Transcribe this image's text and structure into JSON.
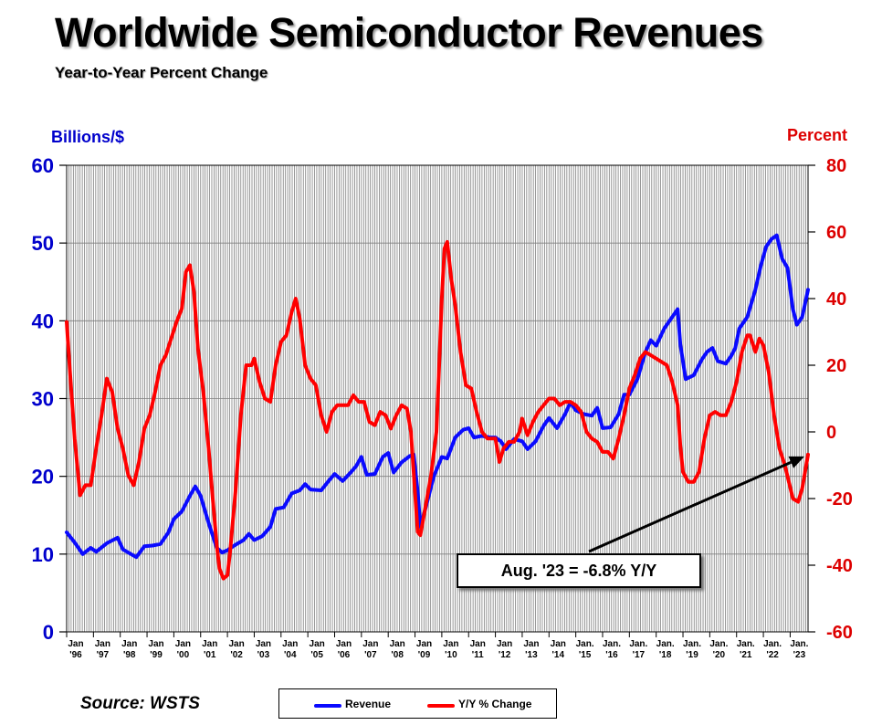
{
  "header": {
    "title": "Worldwide Semiconductor Revenues",
    "subtitle": "Year-to-Year Percent Change"
  },
  "footer": {
    "source": "Source: WSTS"
  },
  "annotation": {
    "text": "Aug. '23 = -6.8% Y/Y"
  },
  "colors": {
    "revenue": "#0a0aff",
    "yoy": "#ff0000",
    "left_axis_text": "#0000cc",
    "right_axis_text": "#dd0000",
    "grid": "#7f7f7f"
  },
  "chart_data": {
    "type": "line",
    "title": "Worldwide Semiconductor Revenues",
    "subtitle": "Year-to-Year Percent Change",
    "left_axis": {
      "label": "Billions/$",
      "min": 0,
      "max": 60,
      "ticks": [
        0,
        10,
        20,
        30,
        40,
        50,
        60
      ]
    },
    "right_axis": {
      "label": "Percent",
      "min": -60,
      "max": 80,
      "ticks": [
        -60,
        -40,
        -20,
        0,
        20,
        40,
        60,
        80
      ]
    },
    "x_axis": {
      "start": 1996.0,
      "end": 2023.667,
      "tick_labels": [
        [
          "Jan",
          "'96"
        ],
        [
          "Jan",
          "'97"
        ],
        [
          "Jan",
          "'98"
        ],
        [
          "Jan",
          "'99"
        ],
        [
          "Jan",
          "'00"
        ],
        [
          "Jan",
          "'01"
        ],
        [
          "Jan",
          "'02"
        ],
        [
          "Jan",
          "'03"
        ],
        [
          "Jan",
          "'04"
        ],
        [
          "Jan",
          "'05"
        ],
        [
          "Jan",
          "'06"
        ],
        [
          "Jan",
          "'07"
        ],
        [
          "Jan",
          "'08"
        ],
        [
          "Jan",
          "'09"
        ],
        [
          "Jan",
          "'10"
        ],
        [
          "Jan",
          "'11"
        ],
        [
          "Jan",
          "'12"
        ],
        [
          "Jan",
          "'13"
        ],
        [
          "Jan",
          "'14"
        ],
        [
          "Jan.",
          "'15"
        ],
        [
          "Jan.",
          "'16"
        ],
        [
          "Jan.",
          "'17"
        ],
        [
          "Jan.",
          "'18"
        ],
        [
          "Jan.",
          "'19"
        ],
        [
          "Jan.",
          "'20"
        ],
        [
          "Jan.",
          "'21"
        ],
        [
          "Jan.",
          "'22"
        ],
        [
          "Jan.",
          "'23"
        ]
      ]
    },
    "grid": true,
    "legend_position": "bottom",
    "series": [
      {
        "name": "Revenue",
        "axis": "left",
        "points": [
          [
            1996.0,
            12.8
          ],
          [
            1996.3,
            11.5
          ],
          [
            1996.6,
            10.0
          ],
          [
            1996.9,
            10.8
          ],
          [
            1997.1,
            10.3
          ],
          [
            1997.5,
            11.4
          ],
          [
            1997.9,
            12.1
          ],
          [
            1998.1,
            10.6
          ],
          [
            1998.4,
            10.0
          ],
          [
            1998.6,
            9.6
          ],
          [
            1998.9,
            11.0
          ],
          [
            1999.2,
            11.1
          ],
          [
            1999.5,
            11.3
          ],
          [
            1999.8,
            12.8
          ],
          [
            2000.0,
            14.5
          ],
          [
            2000.3,
            15.5
          ],
          [
            2000.6,
            17.5
          ],
          [
            2000.8,
            18.7
          ],
          [
            2001.0,
            17.5
          ],
          [
            2001.3,
            14.0
          ],
          [
            2001.6,
            10.8
          ],
          [
            2001.8,
            10.2
          ],
          [
            2002.0,
            10.5
          ],
          [
            2002.3,
            11.2
          ],
          [
            2002.6,
            11.8
          ],
          [
            2002.8,
            12.6
          ],
          [
            2003.0,
            11.8
          ],
          [
            2003.3,
            12.3
          ],
          [
            2003.6,
            13.5
          ],
          [
            2003.8,
            15.8
          ],
          [
            2004.1,
            16.0
          ],
          [
            2004.4,
            17.8
          ],
          [
            2004.7,
            18.2
          ],
          [
            2004.9,
            19.0
          ],
          [
            2005.1,
            18.3
          ],
          [
            2005.5,
            18.2
          ],
          [
            2005.8,
            19.5
          ],
          [
            2006.0,
            20.3
          ],
          [
            2006.3,
            19.4
          ],
          [
            2006.6,
            20.5
          ],
          [
            2006.8,
            21.3
          ],
          [
            2007.0,
            22.5
          ],
          [
            2007.2,
            20.2
          ],
          [
            2007.5,
            20.3
          ],
          [
            2007.8,
            22.5
          ],
          [
            2008.0,
            23.0
          ],
          [
            2008.2,
            20.5
          ],
          [
            2008.5,
            21.8
          ],
          [
            2008.8,
            22.6
          ],
          [
            2008.95,
            22.8
          ],
          [
            2009.1,
            18.0
          ],
          [
            2009.2,
            13.5
          ],
          [
            2009.4,
            16.0
          ],
          [
            2009.7,
            20.0
          ],
          [
            2010.0,
            22.5
          ],
          [
            2010.2,
            22.3
          ],
          [
            2010.5,
            25.0
          ],
          [
            2010.8,
            26.0
          ],
          [
            2011.0,
            26.2
          ],
          [
            2011.2,
            25.0
          ],
          [
            2011.5,
            25.2
          ],
          [
            2011.8,
            25.0
          ],
          [
            2012.0,
            25.0
          ],
          [
            2012.2,
            24.5
          ],
          [
            2012.4,
            23.5
          ],
          [
            2012.7,
            24.8
          ],
          [
            2013.0,
            24.5
          ],
          [
            2013.2,
            23.5
          ],
          [
            2013.5,
            24.5
          ],
          [
            2013.8,
            26.5
          ],
          [
            2014.0,
            27.5
          ],
          [
            2014.3,
            26.2
          ],
          [
            2014.6,
            28.0
          ],
          [
            2014.8,
            29.5
          ],
          [
            2015.0,
            28.5
          ],
          [
            2015.3,
            28.0
          ],
          [
            2015.6,
            27.8
          ],
          [
            2015.8,
            28.8
          ],
          [
            2016.0,
            26.2
          ],
          [
            2016.3,
            26.3
          ],
          [
            2016.6,
            28.0
          ],
          [
            2016.8,
            30.5
          ],
          [
            2017.0,
            30.5
          ],
          [
            2017.3,
            32.5
          ],
          [
            2017.6,
            36.0
          ],
          [
            2017.8,
            37.5
          ],
          [
            2018.0,
            36.8
          ],
          [
            2018.3,
            39.0
          ],
          [
            2018.6,
            40.5
          ],
          [
            2018.8,
            41.5
          ],
          [
            2018.9,
            37.0
          ],
          [
            2019.1,
            32.5
          ],
          [
            2019.4,
            33.0
          ],
          [
            2019.7,
            35.0
          ],
          [
            2019.9,
            36.0
          ],
          [
            2020.1,
            36.5
          ],
          [
            2020.3,
            34.8
          ],
          [
            2020.6,
            34.5
          ],
          [
            2020.8,
            35.5
          ],
          [
            2020.95,
            36.5
          ],
          [
            2021.1,
            39.0
          ],
          [
            2021.4,
            40.5
          ],
          [
            2021.7,
            44.0
          ],
          [
            2021.9,
            47.0
          ],
          [
            2022.1,
            49.5
          ],
          [
            2022.3,
            50.5
          ],
          [
            2022.5,
            51.0
          ],
          [
            2022.7,
            48.0
          ],
          [
            2022.9,
            46.8
          ],
          [
            2023.1,
            41.5
          ],
          [
            2023.25,
            39.5
          ],
          [
            2023.45,
            40.5
          ],
          [
            2023.667,
            44.0
          ]
        ]
      },
      {
        "name": "Y/Y % Change",
        "axis": "right",
        "points": [
          [
            1996.0,
            33
          ],
          [
            1996.15,
            15
          ],
          [
            1996.3,
            -2
          ],
          [
            1996.5,
            -19
          ],
          [
            1996.7,
            -16
          ],
          [
            1996.9,
            -16
          ],
          [
            1997.1,
            -5
          ],
          [
            1997.3,
            5
          ],
          [
            1997.5,
            16
          ],
          [
            1997.7,
            12
          ],
          [
            1997.9,
            1
          ],
          [
            1998.1,
            -5
          ],
          [
            1998.3,
            -13
          ],
          [
            1998.5,
            -16
          ],
          [
            1998.7,
            -9
          ],
          [
            1998.9,
            1
          ],
          [
            1999.1,
            5
          ],
          [
            1999.3,
            12
          ],
          [
            1999.5,
            20
          ],
          [
            1999.7,
            23
          ],
          [
            1999.9,
            28
          ],
          [
            2000.1,
            33
          ],
          [
            2000.3,
            37
          ],
          [
            2000.45,
            48
          ],
          [
            2000.6,
            50
          ],
          [
            2000.75,
            42
          ],
          [
            2000.9,
            25
          ],
          [
            2001.1,
            12
          ],
          [
            2001.3,
            -5
          ],
          [
            2001.45,
            -20
          ],
          [
            2001.6,
            -34
          ],
          [
            2001.7,
            -41
          ],
          [
            2001.85,
            -44
          ],
          [
            2002.0,
            -43
          ],
          [
            2002.1,
            -36
          ],
          [
            2002.3,
            -18
          ],
          [
            2002.5,
            5
          ],
          [
            2002.7,
            20
          ],
          [
            2002.9,
            20
          ],
          [
            2003.0,
            22
          ],
          [
            2003.2,
            15
          ],
          [
            2003.4,
            10
          ],
          [
            2003.6,
            9
          ],
          [
            2003.8,
            20
          ],
          [
            2004.0,
            27
          ],
          [
            2004.2,
            29
          ],
          [
            2004.4,
            36
          ],
          [
            2004.55,
            40
          ],
          [
            2004.7,
            34
          ],
          [
            2004.9,
            20
          ],
          [
            2005.1,
            16
          ],
          [
            2005.3,
            14
          ],
          [
            2005.5,
            5
          ],
          [
            2005.7,
            0
          ],
          [
            2005.9,
            6
          ],
          [
            2006.1,
            8
          ],
          [
            2006.3,
            8
          ],
          [
            2006.5,
            8
          ],
          [
            2006.7,
            11
          ],
          [
            2006.9,
            9
          ],
          [
            2007.1,
            9
          ],
          [
            2007.3,
            3
          ],
          [
            2007.5,
            2
          ],
          [
            2007.7,
            6
          ],
          [
            2007.9,
            5
          ],
          [
            2008.1,
            1
          ],
          [
            2008.3,
            5
          ],
          [
            2008.5,
            8
          ],
          [
            2008.7,
            7
          ],
          [
            2008.85,
            0
          ],
          [
            2009.0,
            -18
          ],
          [
            2009.1,
            -30
          ],
          [
            2009.2,
            -31
          ],
          [
            2009.4,
            -22
          ],
          [
            2009.6,
            -13
          ],
          [
            2009.8,
            0
          ],
          [
            2009.9,
            20
          ],
          [
            2010.0,
            40
          ],
          [
            2010.1,
            55
          ],
          [
            2010.2,
            57
          ],
          [
            2010.35,
            46
          ],
          [
            2010.5,
            38
          ],
          [
            2010.7,
            24
          ],
          [
            2010.9,
            14
          ],
          [
            2011.1,
            13
          ],
          [
            2011.3,
            6
          ],
          [
            2011.5,
            0
          ],
          [
            2011.7,
            -2
          ],
          [
            2011.9,
            -2
          ],
          [
            2012.0,
            -2
          ],
          [
            2012.15,
            -9
          ],
          [
            2012.3,
            -5
          ],
          [
            2012.5,
            -3
          ],
          [
            2012.7,
            -3
          ],
          [
            2012.9,
            0
          ],
          [
            2013.0,
            4
          ],
          [
            2013.2,
            -1
          ],
          [
            2013.4,
            3
          ],
          [
            2013.6,
            6
          ],
          [
            2013.8,
            8
          ],
          [
            2014.0,
            10
          ],
          [
            2014.2,
            10
          ],
          [
            2014.4,
            8
          ],
          [
            2014.6,
            9
          ],
          [
            2014.8,
            9
          ],
          [
            2015.0,
            8
          ],
          [
            2015.2,
            6
          ],
          [
            2015.4,
            0
          ],
          [
            2015.6,
            -2
          ],
          [
            2015.8,
            -3
          ],
          [
            2016.0,
            -6
          ],
          [
            2016.2,
            -6
          ],
          [
            2016.4,
            -8
          ],
          [
            2016.6,
            -2
          ],
          [
            2016.8,
            5
          ],
          [
            2017.0,
            13
          ],
          [
            2017.2,
            17
          ],
          [
            2017.4,
            22
          ],
          [
            2017.6,
            24
          ],
          [
            2017.8,
            23
          ],
          [
            2018.0,
            22
          ],
          [
            2018.2,
            21
          ],
          [
            2018.4,
            20
          ],
          [
            2018.6,
            15
          ],
          [
            2018.8,
            8
          ],
          [
            2018.9,
            -4
          ],
          [
            2019.0,
            -12
          ],
          [
            2019.2,
            -15
          ],
          [
            2019.4,
            -15
          ],
          [
            2019.6,
            -12
          ],
          [
            2019.8,
            -2
          ],
          [
            2020.0,
            5
          ],
          [
            2020.2,
            6
          ],
          [
            2020.4,
            5
          ],
          [
            2020.6,
            5
          ],
          [
            2020.8,
            9
          ],
          [
            2021.0,
            15
          ],
          [
            2021.2,
            24
          ],
          [
            2021.4,
            29
          ],
          [
            2021.5,
            29
          ],
          [
            2021.7,
            24
          ],
          [
            2021.85,
            28
          ],
          [
            2022.0,
            26
          ],
          [
            2022.2,
            18
          ],
          [
            2022.4,
            5
          ],
          [
            2022.6,
            -5
          ],
          [
            2022.8,
            -10
          ],
          [
            2022.95,
            -15
          ],
          [
            2023.1,
            -20
          ],
          [
            2023.3,
            -21
          ],
          [
            2023.45,
            -17
          ],
          [
            2023.667,
            -6.8
          ]
        ]
      }
    ]
  }
}
